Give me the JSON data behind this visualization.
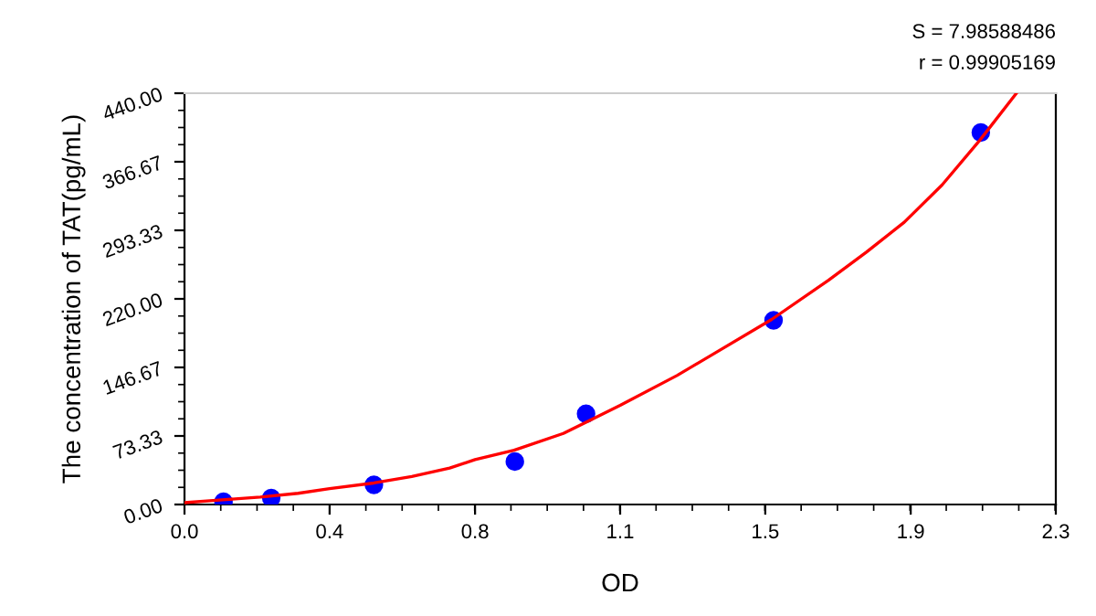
{
  "chart_data": {
    "type": "scatter",
    "xlabel": "OD",
    "ylabel": "The concentration of TAT(pg/mL)",
    "annotations": [
      "S = 7.98588486",
      "r = 0.99905169"
    ],
    "xlim": [
      0,
      2.3
    ],
    "ylim": [
      0,
      440
    ],
    "xticks": [
      {
        "value": 0,
        "label": "0.0"
      },
      {
        "value": 0.383,
        "label": "0.4"
      },
      {
        "value": 0.767,
        "label": "0.8"
      },
      {
        "value": 1.15,
        "label": "1.1"
      },
      {
        "value": 1.533,
        "label": "1.5"
      },
      {
        "value": 1.917,
        "label": "1.9"
      },
      {
        "value": 2.3,
        "label": "2.3"
      }
    ],
    "yticks": [
      {
        "value": 0,
        "label": "0.00"
      },
      {
        "value": 73.33,
        "label": "73.33"
      },
      {
        "value": 146.67,
        "label": "146.67"
      },
      {
        "value": 220,
        "label": "220.00"
      },
      {
        "value": 293.33,
        "label": "293.33"
      },
      {
        "value": 366.67,
        "label": "366.67"
      },
      {
        "value": 440,
        "label": "440.00"
      }
    ],
    "grid": false,
    "legend": false,
    "series": [
      {
        "color": "#0000ff",
        "marker": "circle",
        "x": [
          0.103,
          0.229,
          0.5,
          0.872,
          1.06,
          1.555,
          2.102
        ],
        "values": [
          3,
          7,
          21,
          46,
          97,
          197,
          398
        ]
      },
      {
        "type": "line",
        "color": "#ff0000",
        "line_style": "solid",
        "x": [
          0,
          0.1,
          0.2,
          0.3,
          0.383,
          0.5,
          0.6,
          0.7,
          0.767,
          0.87,
          1.0,
          1.06,
          1.15,
          1.3,
          1.4,
          1.55,
          1.7,
          1.8,
          1.9,
          2.0,
          2.1,
          2.196
        ],
        "values": [
          2,
          5,
          8,
          12,
          17,
          23,
          30,
          39,
          48,
          58,
          76,
          88,
          106,
          138,
          162,
          198,
          240,
          270,
          302,
          342,
          390,
          440
        ]
      }
    ]
  }
}
